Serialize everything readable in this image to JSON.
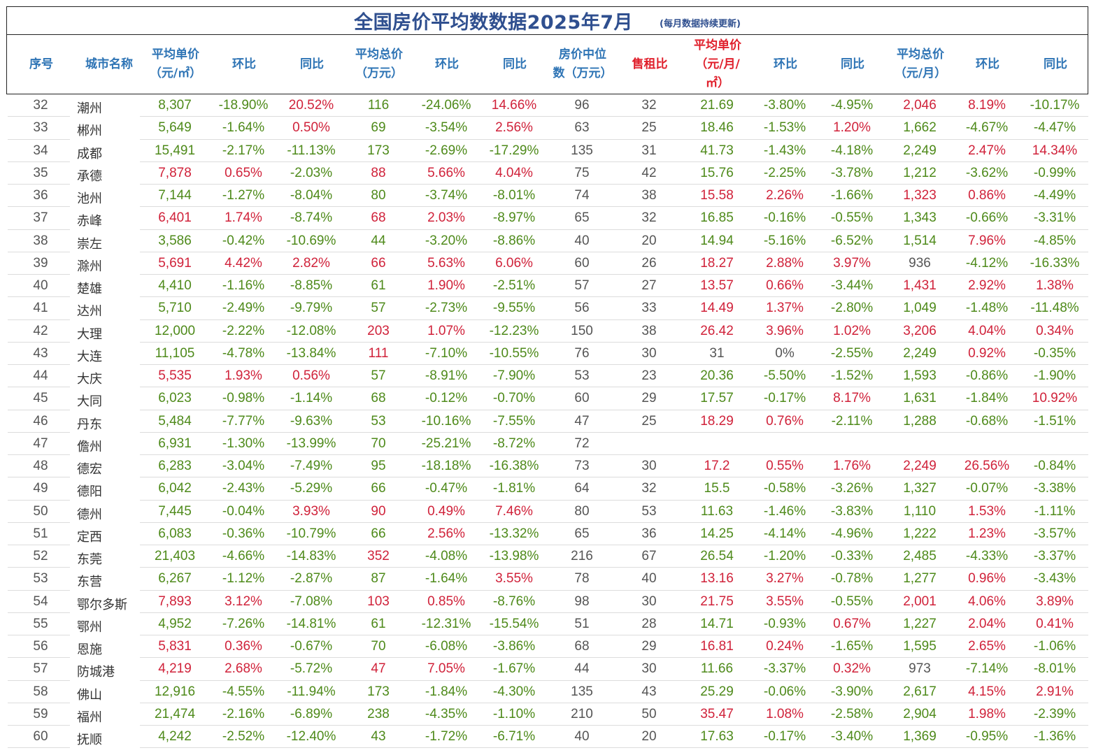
{
  "title": "全国房价平均数数据2025年7月",
  "title_note": "(每月数据持续更新)",
  "headers": [
    "序号",
    "城市名称",
    "平均单价\n（元/㎡）",
    "环比",
    "同比",
    "平均总价\n（万元）",
    "环比",
    "同比",
    "房价中位\n数（万元）",
    "售租比",
    "平均单价\n（元/月/\n㎡）",
    "环比",
    "同比",
    "平均总价\n（元/月）",
    "环比",
    "同比"
  ],
  "colors": {
    "positive": "#d0223a",
    "negative": "#4e8a1a",
    "header": "#2e74b5",
    "header_red": "#e0202c",
    "title": "#2f4f8f"
  },
  "rows": [
    [
      "32",
      "潮州",
      "8,307",
      "-18.90%",
      "20.52%",
      "116",
      "-24.06%",
      "14.66%",
      "96",
      "32",
      "21.69",
      "-3.80%",
      "-4.95%",
      "2,046",
      "8.19%",
      "-10.17%"
    ],
    [
      "33",
      "郴州",
      "5,649",
      "-1.64%",
      "0.50%",
      "69",
      "-3.54%",
      "2.56%",
      "63",
      "25",
      "18.46",
      "-1.53%",
      "1.20%",
      "1,662",
      "-4.67%",
      "-4.47%"
    ],
    [
      "34",
      "成都",
      "15,491",
      "-2.17%",
      "-11.13%",
      "173",
      "-2.69%",
      "-17.29%",
      "135",
      "31",
      "41.73",
      "-1.43%",
      "-4.18%",
      "2,249",
      "2.47%",
      "14.34%"
    ],
    [
      "35",
      "承德",
      "7,878",
      "0.65%",
      "-2.03%",
      "88",
      "5.66%",
      "4.04%",
      "75",
      "42",
      "15.76",
      "-2.25%",
      "-3.78%",
      "1,212",
      "-3.62%",
      "-0.99%"
    ],
    [
      "36",
      "池州",
      "7,144",
      "-1.27%",
      "-8.04%",
      "80",
      "-3.74%",
      "-8.01%",
      "74",
      "38",
      "15.58",
      "2.26%",
      "-1.66%",
      "1,323",
      "0.86%",
      "-4.49%"
    ],
    [
      "37",
      "赤峰",
      "6,401",
      "1.74%",
      "-8.74%",
      "68",
      "2.03%",
      "-8.97%",
      "65",
      "32",
      "16.85",
      "-0.16%",
      "-0.55%",
      "1,343",
      "-0.66%",
      "-3.31%"
    ],
    [
      "38",
      "崇左",
      "3,586",
      "-0.42%",
      "-10.69%",
      "44",
      "-3.20%",
      "-8.86%",
      "40",
      "20",
      "14.94",
      "-5.16%",
      "-6.52%",
      "1,514",
      "7.96%",
      "-4.85%"
    ],
    [
      "39",
      "滁州",
      "5,691",
      "4.42%",
      "2.82%",
      "66",
      "5.63%",
      "6.06%",
      "60",
      "26",
      "18.27",
      "2.88%",
      "3.97%",
      "936",
      "-4.12%",
      "-16.33%"
    ],
    [
      "40",
      "楚雄",
      "4,410",
      "-1.16%",
      "-8.85%",
      "61",
      "1.90%",
      "-2.51%",
      "57",
      "27",
      "13.57",
      "0.66%",
      "-3.44%",
      "1,431",
      "2.92%",
      "1.38%"
    ],
    [
      "41",
      "达州",
      "5,710",
      "-2.49%",
      "-9.79%",
      "57",
      "-2.73%",
      "-9.55%",
      "56",
      "33",
      "14.49",
      "1.37%",
      "-2.80%",
      "1,049",
      "-1.48%",
      "-11.48%"
    ],
    [
      "42",
      "大理",
      "12,000",
      "-2.22%",
      "-12.08%",
      "203",
      "1.07%",
      "-12.23%",
      "150",
      "38",
      "26.42",
      "3.96%",
      "1.02%",
      "3,206",
      "4.04%",
      "0.34%"
    ],
    [
      "43",
      "大连",
      "11,105",
      "-4.78%",
      "-13.84%",
      "111",
      "-7.10%",
      "-10.55%",
      "76",
      "30",
      "31",
      "0%",
      "-2.55%",
      "2,249",
      "0.92%",
      "-0.35%"
    ],
    [
      "44",
      "大庆",
      "5,535",
      "1.93%",
      "0.56%",
      "57",
      "-8.91%",
      "-7.90%",
      "53",
      "23",
      "20.36",
      "-5.50%",
      "-1.52%",
      "1,593",
      "-0.86%",
      "-1.90%"
    ],
    [
      "45",
      "大同",
      "6,023",
      "-0.98%",
      "-1.14%",
      "68",
      "-0.12%",
      "-0.70%",
      "60",
      "29",
      "17.57",
      "-0.17%",
      "8.17%",
      "1,631",
      "-1.84%",
      "10.92%"
    ],
    [
      "46",
      "丹东",
      "5,484",
      "-7.77%",
      "-9.63%",
      "53",
      "-10.16%",
      "-7.55%",
      "47",
      "25",
      "18.29",
      "0.76%",
      "-2.11%",
      "1,288",
      "-0.68%",
      "-1.51%"
    ],
    [
      "47",
      "儋州",
      "6,931",
      "-1.30%",
      "-13.99%",
      "70",
      "-25.21%",
      "-8.72%",
      "72",
      "",
      "",
      "",
      "",
      "",
      "",
      ""
    ],
    [
      "48",
      "德宏",
      "6,283",
      "-3.04%",
      "-7.49%",
      "95",
      "-18.18%",
      "-16.38%",
      "73",
      "30",
      "17.2",
      "0.55%",
      "1.76%",
      "2,249",
      "26.56%",
      "-0.84%"
    ],
    [
      "49",
      "德阳",
      "6,042",
      "-2.43%",
      "-5.29%",
      "66",
      "-0.47%",
      "-1.81%",
      "64",
      "32",
      "15.5",
      "-0.58%",
      "-3.26%",
      "1,327",
      "-0.07%",
      "-3.38%"
    ],
    [
      "50",
      "德州",
      "7,445",
      "-0.04%",
      "3.93%",
      "90",
      "0.49%",
      "7.46%",
      "80",
      "53",
      "11.63",
      "-1.46%",
      "-3.83%",
      "1,110",
      "1.53%",
      "-1.11%"
    ],
    [
      "51",
      "定西",
      "6,083",
      "-0.36%",
      "-10.79%",
      "66",
      "2.56%",
      "-13.32%",
      "65",
      "36",
      "14.25",
      "-4.14%",
      "-4.96%",
      "1,222",
      "1.23%",
      "-3.57%"
    ],
    [
      "52",
      "东莞",
      "21,403",
      "-4.66%",
      "-14.83%",
      "352",
      "-4.08%",
      "-13.98%",
      "216",
      "67",
      "26.54",
      "-1.20%",
      "-0.33%",
      "2,485",
      "-4.33%",
      "-3.37%"
    ],
    [
      "53",
      "东营",
      "6,267",
      "-1.12%",
      "-2.87%",
      "87",
      "-1.64%",
      "3.55%",
      "78",
      "40",
      "13.16",
      "3.27%",
      "-0.78%",
      "1,277",
      "0.96%",
      "-3.43%"
    ],
    [
      "54",
      "鄂尔多斯",
      "7,893",
      "3.12%",
      "-7.08%",
      "103",
      "0.85%",
      "-8.76%",
      "98",
      "30",
      "21.75",
      "3.55%",
      "-0.55%",
      "2,001",
      "4.06%",
      "3.89%"
    ],
    [
      "55",
      "鄂州",
      "4,952",
      "-7.26%",
      "-14.81%",
      "61",
      "-12.31%",
      "-15.54%",
      "51",
      "28",
      "14.71",
      "-0.93%",
      "0.67%",
      "1,227",
      "2.04%",
      "0.41%"
    ],
    [
      "56",
      "恩施",
      "5,831",
      "0.36%",
      "-0.67%",
      "70",
      "-6.08%",
      "-3.86%",
      "68",
      "29",
      "16.81",
      "0.24%",
      "-1.65%",
      "1,595",
      "2.65%",
      "-1.06%"
    ],
    [
      "57",
      "防城港",
      "4,219",
      "2.68%",
      "-5.72%",
      "47",
      "7.05%",
      "-1.67%",
      "44",
      "30",
      "11.66",
      "-3.37%",
      "0.32%",
      "973",
      "-7.14%",
      "-8.01%"
    ],
    [
      "58",
      "佛山",
      "12,916",
      "-4.55%",
      "-11.94%",
      "173",
      "-1.84%",
      "-4.30%",
      "135",
      "43",
      "25.29",
      "-0.06%",
      "-3.90%",
      "2,617",
      "4.15%",
      "2.91%"
    ],
    [
      "59",
      "福州",
      "21,474",
      "-2.16%",
      "-6.89%",
      "238",
      "-4.35%",
      "-1.10%",
      "210",
      "50",
      "35.47",
      "1.08%",
      "-2.58%",
      "2,904",
      "1.98%",
      "-2.39%"
    ],
    [
      "60",
      "抚顺",
      "4,242",
      "-2.52%",
      "-12.40%",
      "43",
      "-1.72%",
      "-6.71%",
      "40",
      "20",
      "17.63",
      "-0.17%",
      "-3.40%",
      "1,369",
      "-0.95%",
      "-1.36%"
    ]
  ],
  "cell_colors": [
    [
      "n",
      "c",
      "g",
      "g",
      "r",
      "g",
      "g",
      "r",
      "n",
      "n",
      "g",
      "g",
      "g",
      "r",
      "r",
      "g"
    ],
    [
      "n",
      "c",
      "g",
      "g",
      "r",
      "g",
      "g",
      "r",
      "n",
      "n",
      "g",
      "g",
      "r",
      "g",
      "g",
      "g"
    ],
    [
      "n",
      "c",
      "g",
      "g",
      "g",
      "g",
      "g",
      "g",
      "n",
      "n",
      "g",
      "g",
      "g",
      "g",
      "r",
      "r"
    ],
    [
      "n",
      "c",
      "r",
      "r",
      "g",
      "r",
      "r",
      "r",
      "n",
      "n",
      "g",
      "g",
      "g",
      "g",
      "g",
      "g"
    ],
    [
      "n",
      "c",
      "g",
      "g",
      "g",
      "g",
      "g",
      "g",
      "n",
      "n",
      "r",
      "r",
      "g",
      "r",
      "r",
      "g"
    ],
    [
      "n",
      "c",
      "r",
      "r",
      "g",
      "r",
      "r",
      "g",
      "n",
      "n",
      "g",
      "g",
      "g",
      "g",
      "g",
      "g"
    ],
    [
      "n",
      "c",
      "g",
      "g",
      "g",
      "g",
      "g",
      "g",
      "n",
      "n",
      "g",
      "g",
      "g",
      "g",
      "r",
      "g"
    ],
    [
      "n",
      "c",
      "r",
      "r",
      "r",
      "r",
      "r",
      "r",
      "n",
      "n",
      "r",
      "r",
      "r",
      "n",
      "g",
      "g"
    ],
    [
      "n",
      "c",
      "g",
      "g",
      "g",
      "g",
      "r",
      "g",
      "n",
      "n",
      "r",
      "r",
      "g",
      "r",
      "r",
      "r"
    ],
    [
      "n",
      "c",
      "g",
      "g",
      "g",
      "g",
      "g",
      "g",
      "n",
      "n",
      "r",
      "r",
      "g",
      "g",
      "g",
      "g"
    ],
    [
      "n",
      "c",
      "g",
      "g",
      "g",
      "r",
      "r",
      "g",
      "n",
      "n",
      "r",
      "r",
      "r",
      "r",
      "r",
      "r"
    ],
    [
      "n",
      "c",
      "g",
      "g",
      "g",
      "r",
      "g",
      "g",
      "n",
      "n",
      "n",
      "n",
      "g",
      "g",
      "r",
      "g"
    ],
    [
      "n",
      "c",
      "r",
      "r",
      "r",
      "g",
      "g",
      "g",
      "n",
      "n",
      "g",
      "g",
      "g",
      "g",
      "g",
      "g"
    ],
    [
      "n",
      "c",
      "g",
      "g",
      "g",
      "g",
      "g",
      "g",
      "n",
      "n",
      "g",
      "g",
      "r",
      "g",
      "g",
      "r"
    ],
    [
      "n",
      "c",
      "g",
      "g",
      "g",
      "g",
      "g",
      "g",
      "n",
      "n",
      "r",
      "r",
      "g",
      "g",
      "g",
      "g"
    ],
    [
      "n",
      "c",
      "g",
      "g",
      "g",
      "g",
      "g",
      "g",
      "n",
      "n",
      "n",
      "n",
      "n",
      "n",
      "n",
      "n"
    ],
    [
      "n",
      "c",
      "g",
      "g",
      "g",
      "g",
      "g",
      "g",
      "n",
      "n",
      "r",
      "r",
      "r",
      "r",
      "r",
      "g"
    ],
    [
      "n",
      "c",
      "g",
      "g",
      "g",
      "g",
      "g",
      "g",
      "n",
      "n",
      "g",
      "g",
      "g",
      "g",
      "g",
      "g"
    ],
    [
      "n",
      "c",
      "g",
      "g",
      "r",
      "r",
      "r",
      "r",
      "n",
      "n",
      "g",
      "g",
      "g",
      "g",
      "r",
      "g"
    ],
    [
      "n",
      "c",
      "g",
      "g",
      "g",
      "g",
      "r",
      "g",
      "n",
      "n",
      "g",
      "g",
      "g",
      "g",
      "r",
      "g"
    ],
    [
      "n",
      "c",
      "g",
      "g",
      "g",
      "r",
      "g",
      "g",
      "n",
      "n",
      "g",
      "g",
      "g",
      "g",
      "g",
      "g"
    ],
    [
      "n",
      "c",
      "g",
      "g",
      "g",
      "g",
      "g",
      "r",
      "n",
      "n",
      "r",
      "r",
      "g",
      "g",
      "r",
      "g"
    ],
    [
      "n",
      "c",
      "r",
      "r",
      "g",
      "r",
      "r",
      "g",
      "n",
      "n",
      "r",
      "r",
      "g",
      "r",
      "r",
      "r"
    ],
    [
      "n",
      "c",
      "g",
      "g",
      "g",
      "g",
      "g",
      "g",
      "n",
      "n",
      "g",
      "g",
      "r",
      "g",
      "r",
      "r"
    ],
    [
      "n",
      "c",
      "r",
      "r",
      "g",
      "g",
      "g",
      "g",
      "n",
      "n",
      "r",
      "r",
      "g",
      "g",
      "r",
      "g"
    ],
    [
      "n",
      "c",
      "r",
      "r",
      "g",
      "r",
      "r",
      "g",
      "n",
      "n",
      "g",
      "g",
      "r",
      "n",
      "g",
      "g"
    ],
    [
      "n",
      "c",
      "g",
      "g",
      "g",
      "g",
      "g",
      "g",
      "n",
      "n",
      "g",
      "g",
      "g",
      "g",
      "r",
      "r"
    ],
    [
      "n",
      "c",
      "g",
      "g",
      "g",
      "g",
      "g",
      "g",
      "n",
      "n",
      "r",
      "r",
      "g",
      "g",
      "r",
      "g"
    ],
    [
      "n",
      "c",
      "g",
      "g",
      "g",
      "g",
      "g",
      "g",
      "n",
      "n",
      "g",
      "g",
      "g",
      "g",
      "g",
      "g"
    ]
  ]
}
